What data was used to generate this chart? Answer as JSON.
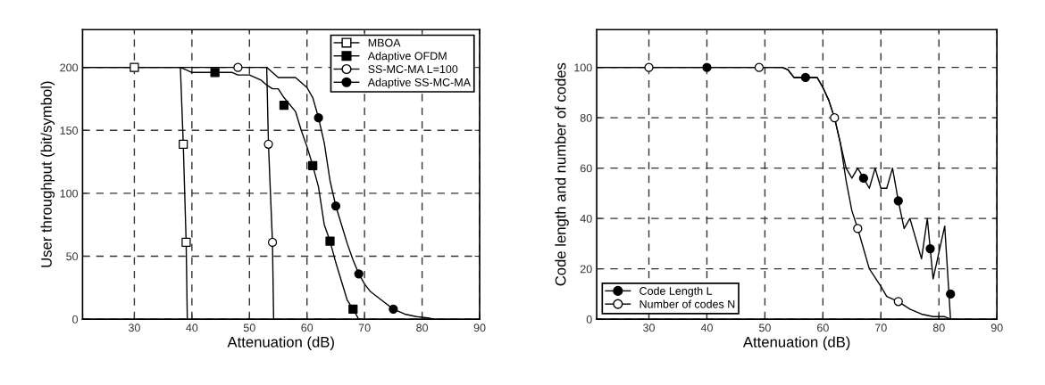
{
  "chart_data": [
    {
      "type": "line",
      "xlabel": "Attenuation (dB)",
      "ylabel": "User throughput (bit/symbol)",
      "xlim": [
        21,
        90
      ],
      "xticks": [
        30,
        40,
        50,
        60,
        70,
        80,
        90
      ],
      "ylim": [
        0,
        230
      ],
      "yticks": [
        0,
        50,
        100,
        150,
        200
      ],
      "grid": true,
      "legend": "top right",
      "series": [
        {
          "color": "#000000",
          "x": [
            21,
            38,
            38.5,
            39,
            39.2
          ],
          "values": [
            200,
            200,
            139,
            61,
            0
          ]
        },
        {
          "color": "#000000",
          "x": [
            38,
            39,
            40,
            47,
            48,
            50,
            52,
            53,
            54,
            55,
            56,
            58,
            59,
            60,
            61,
            62,
            63,
            64,
            65,
            66,
            67,
            68,
            69
          ],
          "values": [
            200,
            198,
            196,
            196,
            194,
            194,
            190,
            186,
            183,
            183,
            176,
            165,
            150,
            137,
            122,
            105,
            75,
            62,
            45,
            30,
            15,
            8,
            0
          ]
        },
        {
          "color": "#000000",
          "x": [
            21,
            53,
            53.3,
            54,
            54.2
          ],
          "values": [
            200,
            200,
            139,
            61,
            0
          ]
        },
        {
          "color": "#000000",
          "x": [
            53,
            54,
            55,
            58,
            60,
            61,
            62,
            63,
            64,
            65,
            66,
            67,
            68,
            69,
            70,
            71,
            73,
            75,
            77,
            79,
            81,
            82
          ],
          "values": [
            200,
            196,
            192,
            192,
            184,
            176,
            160,
            140,
            110,
            90,
            75,
            60,
            47,
            36,
            28,
            22,
            15,
            8,
            4,
            2,
            1,
            0
          ]
        },
        {
          "type": "scatter",
          "name": "MBOA",
          "color": "#ffffff",
          "marker": "square",
          "x": [
            30,
            38.5,
            39
          ],
          "values": [
            200,
            139,
            61
          ]
        },
        {
          "type": "scatter",
          "name": "Adaptive OFDM",
          "color": "#000000",
          "marker": "square",
          "x": [
            44,
            56,
            61,
            64,
            68
          ],
          "values": [
            196,
            170,
            122,
            62,
            8
          ]
        },
        {
          "type": "scatter",
          "name": "SS-MC-MA L=100",
          "color": "#ffffff",
          "marker": "circle",
          "x": [
            48,
            53.3,
            54
          ],
          "values": [
            200,
            139,
            61
          ]
        },
        {
          "type": "scatter",
          "name": "Adaptive SS-MC-MA",
          "color": "#000000",
          "marker": "circle",
          "x": [
            62,
            65,
            69,
            75
          ],
          "values": [
            160,
            90,
            36,
            8
          ]
        }
      ]
    },
    {
      "type": "line",
      "xlabel": "Attenuation (dB)",
      "ylabel": "Code length and number of codes",
      "xlim": [
        21,
        90
      ],
      "xticks": [
        30,
        40,
        50,
        60,
        70,
        80,
        90
      ],
      "ylim": [
        0,
        115
      ],
      "yticks": [
        0,
        20,
        40,
        60,
        80,
        100
      ],
      "grid": true,
      "legend": "bottom left",
      "series": [
        {
          "color": "#000000",
          "x": [
            21,
            53,
            54,
            55,
            57,
            59,
            60,
            61,
            62,
            63,
            64,
            65,
            66,
            67,
            68,
            69,
            70,
            71,
            72,
            73,
            74,
            75,
            77,
            78,
            79,
            81,
            82
          ],
          "values": [
            100,
            100,
            99,
            96,
            96,
            96,
            92,
            87,
            80,
            70,
            60,
            56,
            60,
            56,
            52,
            60,
            52,
            52,
            60,
            47,
            36,
            40,
            24,
            40,
            16,
            37,
            0
          ]
        },
        {
          "color": "#000000",
          "x": [
            21,
            53,
            54,
            55,
            59,
            60,
            61,
            62,
            63,
            64,
            65,
            66,
            67,
            68,
            70,
            71,
            73,
            75,
            77,
            79,
            81,
            82
          ],
          "values": [
            100,
            100,
            99,
            96,
            96,
            92,
            87,
            80,
            70,
            55,
            43,
            36,
            28,
            20,
            13,
            9,
            7,
            4,
            2,
            1,
            1,
            0
          ]
        },
        {
          "type": "scatter",
          "name": "Code Length L",
          "color": "#000000",
          "marker": "circle",
          "x": [
            40,
            57,
            67,
            73,
            78.5,
            82
          ],
          "values": [
            100,
            96,
            56,
            47,
            28,
            10
          ]
        },
        {
          "type": "scatter",
          "name": "Number of codes N",
          "color": "#ffffff",
          "marker": "circle",
          "x": [
            30,
            49,
            62,
            66,
            73
          ],
          "values": [
            100,
            100,
            80,
            36,
            7
          ]
        }
      ]
    }
  ]
}
